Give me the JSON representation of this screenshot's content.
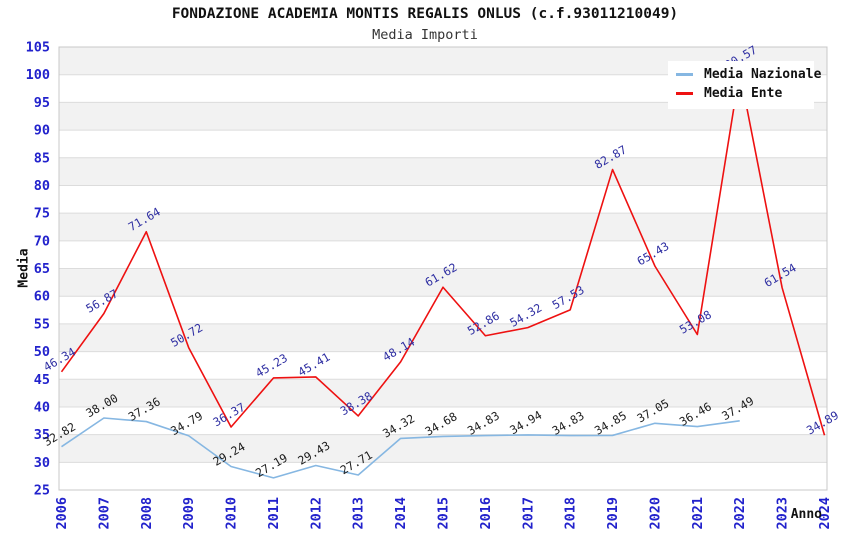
{
  "header": {
    "title": "FONDAZIONE ACADEMIA MONTIS REGALIS ONLUS (c.f.93011210049)",
    "subtitle": "Media Importi"
  },
  "chart_data": {
    "type": "line",
    "title": "FONDAZIONE ACADEMIA MONTIS REGALIS ONLUS (c.f.93011210049)",
    "subtitle": "Media Importi",
    "xlabel": "Anno",
    "ylabel": "Media",
    "ylim": [
      25,
      105
    ],
    "ytick_step": 5,
    "grid": "horizontal-bands-alternating",
    "legend_position": "top-right",
    "categories": [
      "2006",
      "2007",
      "2008",
      "2009",
      "2010",
      "2011",
      "2012",
      "2013",
      "2014",
      "2015",
      "2016",
      "2017",
      "2018",
      "2019",
      "2020",
      "2021",
      "2022",
      "2023",
      "2024"
    ],
    "series": [
      {
        "name": "Media Nazionale",
        "color": "#86b7e2",
        "label_color": "#1c1c1c",
        "values": [
          32.82,
          38.0,
          37.36,
          34.79,
          29.24,
          27.19,
          29.43,
          27.71,
          34.32,
          34.68,
          34.83,
          34.94,
          34.83,
          34.85,
          37.05,
          36.46,
          37.49,
          null,
          null
        ]
      },
      {
        "name": "Media Ente",
        "color": "#ee1111",
        "label_color": "#2e2ea2",
        "values": [
          46.34,
          56.87,
          71.64,
          50.72,
          36.37,
          45.23,
          45.41,
          38.38,
          48.14,
          61.62,
          52.86,
          54.32,
          57.53,
          82.87,
          65.43,
          53.08,
          100.57,
          61.54,
          34.89
        ]
      }
    ],
    "colors": {
      "tick_label": "#2222cc",
      "band_gray": "#f2f2f2",
      "gridline": "#dcdcdc",
      "plot_border": "#c8c8c8",
      "background": "#ffffff"
    }
  }
}
